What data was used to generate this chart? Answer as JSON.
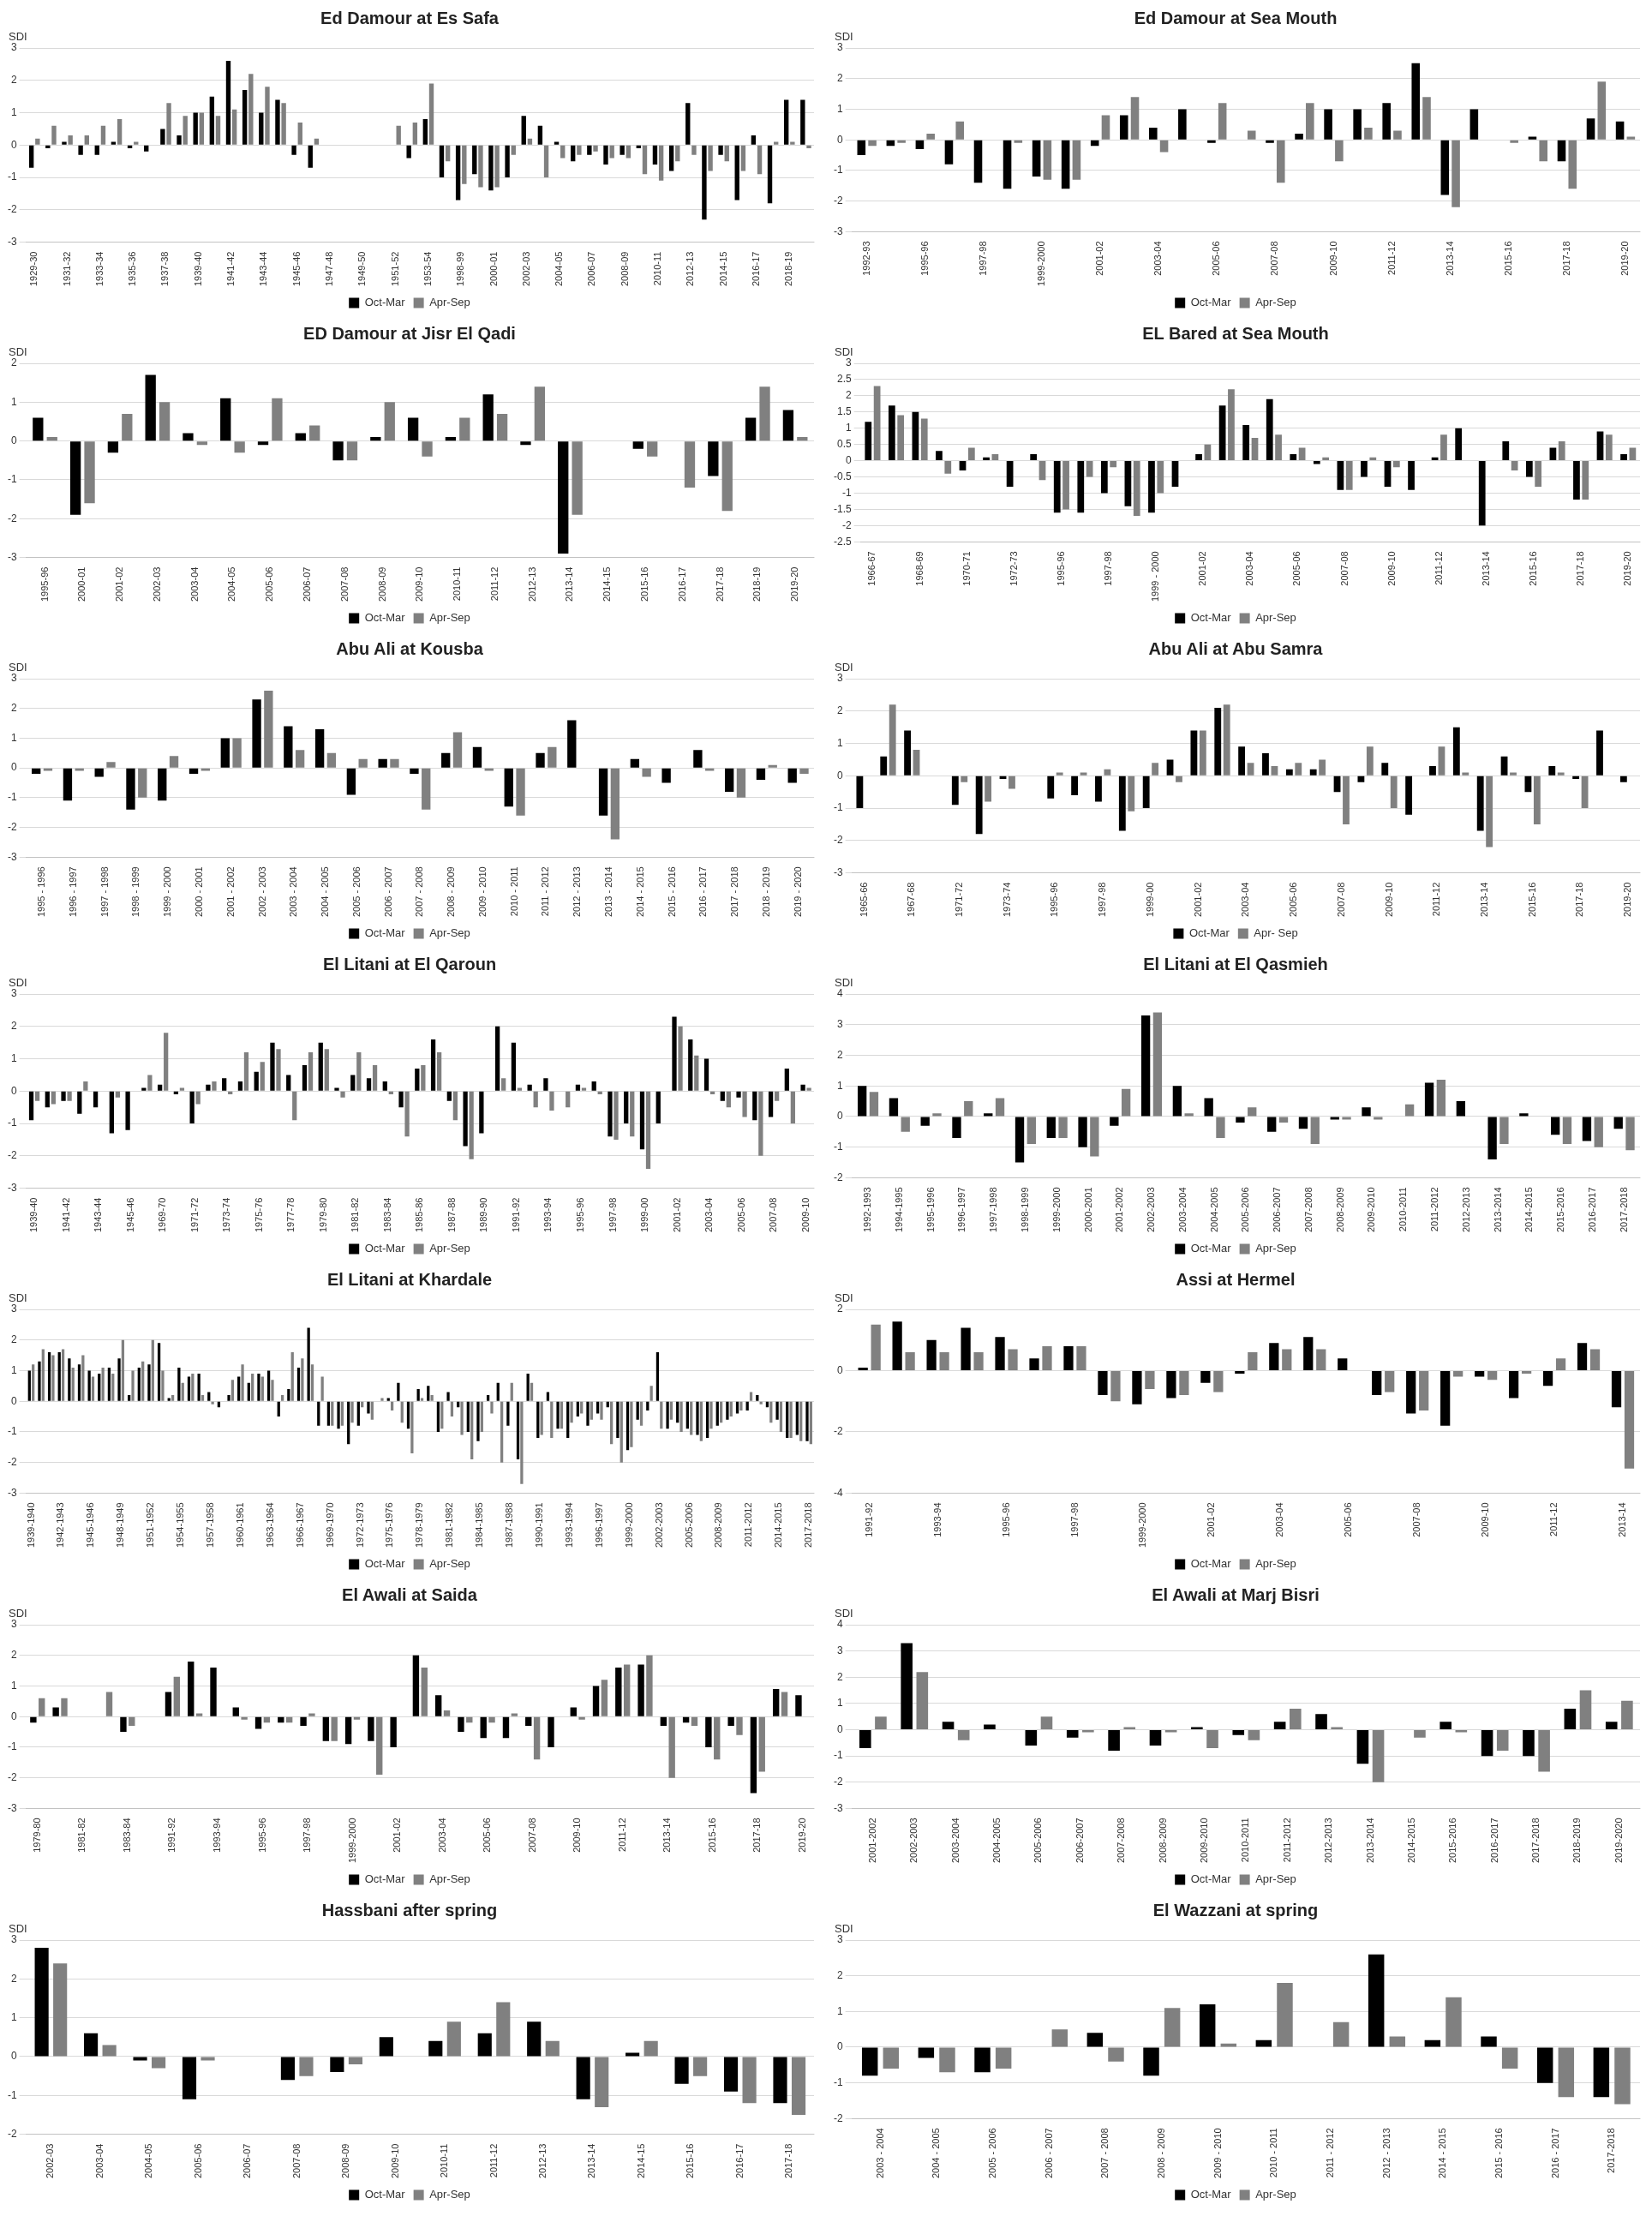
{
  "chart_data": [
    {
      "type": "bar",
      "title": "Ed Damour at Es Safa",
      "ylabel": "SDI",
      "legend": "bottom",
      "grid": "y",
      "ylim": [
        -3,
        3
      ],
      "yticks": [
        -3,
        -2,
        -1,
        0,
        1,
        2,
        3
      ],
      "categories": [
        "1929-30",
        null,
        "1931-32",
        null,
        "1933-34",
        null,
        "1935-36",
        null,
        "1937-38",
        null,
        "1939-40",
        null,
        "1941-42",
        null,
        "1943-44",
        null,
        "1945-46",
        null,
        "1947-48",
        null,
        "1949-50",
        null,
        "1951-52",
        null,
        "1953-54",
        null,
        "1998-99",
        null,
        "2000-01",
        null,
        "2002-03",
        null,
        "2004-05",
        null,
        "2006-07",
        null,
        "2008-09",
        null,
        "2010-11",
        null,
        "2012-13",
        null,
        "2014-15",
        null,
        "2016-17",
        null,
        "2018-19",
        null
      ],
      "series": [
        {
          "name": "Oct-Mar",
          "color": "#000000",
          "values": [
            -0.7,
            -0.1,
            0.1,
            -0.3,
            -0.3,
            0.1,
            -0.1,
            -0.2,
            0.5,
            0.3,
            1.0,
            1.5,
            2.6,
            1.7,
            1.0,
            1.4,
            -0.3,
            -0.7,
            null,
            null,
            null,
            null,
            0.0,
            -0.4,
            0.8,
            -1.0,
            -1.7,
            -0.9,
            -1.4,
            -1.0,
            0.9,
            0.6,
            0.1,
            -0.5,
            -0.3,
            -0.6,
            -0.3,
            -0.1,
            -0.6,
            -0.8,
            1.3,
            -2.3,
            -0.3,
            -1.7,
            0.3,
            -1.8,
            1.4,
            1.4
          ]
        },
        {
          "name": "Apr-Sep",
          "color": "#808080",
          "values": [
            0.2,
            0.6,
            0.3,
            0.3,
            0.6,
            0.8,
            0.1,
            0.0,
            1.3,
            0.9,
            1.0,
            0.9,
            1.1,
            2.2,
            1.8,
            1.3,
            0.7,
            0.2,
            null,
            null,
            null,
            null,
            0.6,
            0.7,
            1.9,
            -0.5,
            -1.2,
            -1.3,
            -1.3,
            -0.3,
            0.2,
            -1.0,
            -0.4,
            -0.3,
            -0.2,
            -0.4,
            -0.4,
            -0.9,
            -1.1,
            -0.5,
            -0.3,
            -0.8,
            -0.5,
            -0.8,
            -0.9,
            0.1,
            0.1,
            -0.1
          ]
        }
      ]
    },
    {
      "type": "bar",
      "title": "Ed Damour at Sea Mouth",
      "ylabel": "SDI",
      "legend": "bottom",
      "grid": "y",
      "ylim": [
        -3,
        3
      ],
      "yticks": [
        -3,
        -2,
        -1,
        0,
        1,
        2,
        3
      ],
      "categories": [
        "1992-93",
        null,
        "1995-96",
        null,
        "1997-98",
        null,
        "1999-2000",
        null,
        "2001-02",
        null,
        "2003-04",
        null,
        "2005-06",
        null,
        "2007-08",
        null,
        "2009-10",
        null,
        "2011-12",
        null,
        "2013-14",
        null,
        "2015-16",
        null,
        "2017-18",
        null,
        "2019-20"
      ],
      "series": [
        {
          "name": "Oct-Mar",
          "color": "#000000",
          "values": [
            -0.5,
            -0.2,
            -0.3,
            -0.8,
            -1.4,
            -1.6,
            -1.2,
            -1.6,
            -0.2,
            0.8,
            0.4,
            1.0,
            -0.1,
            0.0,
            -0.1,
            0.2,
            1.0,
            1.0,
            1.2,
            2.5,
            -1.8,
            1.0,
            0.0,
            0.1,
            -0.7,
            0.7,
            0.6
          ]
        },
        {
          "name": "Apr-Sep",
          "color": "#808080",
          "values": [
            -0.2,
            -0.1,
            0.2,
            0.6,
            0.0,
            -0.1,
            -1.3,
            -1.3,
            0.8,
            1.4,
            -0.4,
            0.0,
            1.2,
            0.3,
            -1.4,
            1.2,
            -0.7,
            0.4,
            0.3,
            1.4,
            -2.2,
            0.0,
            -0.1,
            -0.7,
            -1.6,
            1.9,
            0.1
          ]
        }
      ]
    },
    {
      "type": "bar",
      "title": "ED Damour at Jisr El Qadi",
      "ylabel": "SDI",
      "legend": "bottom",
      "grid": "y",
      "ylim": [
        -3,
        2
      ],
      "yticks": [
        -3,
        -2,
        -1,
        0,
        1,
        2
      ],
      "categories": [
        "1995-96",
        "2000-01",
        "2001-02",
        "2002-03",
        "2003-04",
        "2004-05",
        "2005-06",
        "2006-07",
        "2007-08",
        "2008-09",
        "2009-10",
        "2010-11",
        "2011-12",
        "2012-13",
        "2013-14",
        "2014-15",
        "2015-16",
        "2016-17",
        "2017-18",
        "2018-19",
        "2019-20"
      ],
      "series": [
        {
          "name": "Oct-Mar",
          "color": "#000000",
          "values": [
            0.6,
            -1.9,
            -0.3,
            1.7,
            0.2,
            1.1,
            -0.1,
            0.2,
            -0.5,
            0.1,
            0.6,
            0.1,
            1.2,
            -0.1,
            -2.9,
            0.0,
            -0.2,
            0.0,
            -0.9,
            0.6,
            0.8
          ]
        },
        {
          "name": "Apr-Sep",
          "color": "#808080",
          "values": [
            0.1,
            -1.6,
            0.7,
            1.0,
            -0.1,
            -0.3,
            1.1,
            0.4,
            -0.5,
            1.0,
            -0.4,
            0.6,
            0.7,
            1.4,
            -1.9,
            0.0,
            -0.4,
            -1.2,
            -1.8,
            1.4,
            0.1
          ]
        }
      ]
    },
    {
      "type": "bar",
      "title": "EL Bared at Sea Mouth",
      "ylabel": "SDI",
      "legend": "bottom",
      "grid": "y",
      "ylim": [
        -2.5,
        3
      ],
      "yticks": [
        -2.5,
        -2,
        -1.5,
        -1,
        -0.5,
        0,
        0.5,
        1,
        1.5,
        2,
        2.5,
        3
      ],
      "categories": [
        "1966-67",
        null,
        "1968-69",
        null,
        "1970-71",
        null,
        "1972-73",
        null,
        "1995-96",
        null,
        "1997-98",
        null,
        "1999 - 2000",
        null,
        "2001-02",
        null,
        "2003-04",
        null,
        "2005-06",
        null,
        "2007-08",
        null,
        "2009-10",
        null,
        "2011-12",
        null,
        "2013-14",
        null,
        "2015-16",
        null,
        "2017-18",
        null,
        "2019-20"
      ],
      "series": [
        {
          "name": "Oct-Mar",
          "color": "#000000",
          "values": [
            1.2,
            1.7,
            1.5,
            0.3,
            -0.3,
            0.1,
            -0.8,
            0.2,
            -1.6,
            -1.6,
            -1.0,
            -1.4,
            -1.6,
            -0.8,
            0.2,
            1.7,
            1.1,
            1.9,
            0.2,
            -0.1,
            -0.9,
            -0.5,
            -0.8,
            -0.9,
            0.1,
            1.0,
            -2.0,
            0.6,
            -0.5,
            0.4,
            -1.2,
            0.9,
            0.2
          ]
        },
        {
          "name": "Apr-Sep",
          "color": "#808080",
          "values": [
            2.3,
            1.4,
            1.3,
            -0.4,
            0.4,
            0.2,
            0.0,
            -0.6,
            -1.5,
            -0.5,
            -0.2,
            -1.7,
            -1.0,
            0.0,
            0.5,
            2.2,
            0.7,
            0.8,
            0.4,
            0.1,
            -0.9,
            0.1,
            -0.2,
            0.0,
            0.8,
            0.0,
            0.0,
            -0.3,
            -0.8,
            0.6,
            -1.2,
            0.8,
            0.4
          ]
        }
      ]
    },
    {
      "type": "bar",
      "title": "Abu Ali at Kousba",
      "ylabel": "SDI",
      "legend": "bottom",
      "grid": "y",
      "ylim": [
        -3,
        3
      ],
      "yticks": [
        -3,
        -2,
        -1,
        0,
        1,
        2,
        3
      ],
      "categories": [
        "1995 - 1996",
        "1996 - 1997",
        "1997 - 1998",
        "1998 - 1999",
        "1999 - 2000",
        "2000 - 2001",
        "2001 - 2002",
        "2002 - 2003",
        "2003 - 2004",
        "2004 - 2005",
        "2005 - 2006",
        "2006 - 2007",
        "2007 - 2008",
        "2008 - 2009",
        "2009 - 2010",
        "2010 - 2011",
        "2011 - 2012",
        "2012 - 2013",
        "2013 - 2014",
        "2014 - 2015",
        "2015 - 2016",
        "2016 - 2017",
        "2017 - 2018",
        "2018 - 2019",
        "2019 - 2020"
      ],
      "series": [
        {
          "name": "Oct-Mar",
          "color": "#000000",
          "values": [
            -0.2,
            -1.1,
            -0.3,
            -1.4,
            -1.1,
            -0.2,
            1.0,
            2.3,
            1.4,
            1.3,
            -0.9,
            0.3,
            -0.2,
            0.5,
            0.7,
            -1.3,
            0.5,
            1.6,
            -1.6,
            0.3,
            -0.5,
            0.6,
            -0.8,
            -0.4,
            -0.5
          ]
        },
        {
          "name": "Apr-Sep",
          "color": "#808080",
          "values": [
            -0.1,
            -0.1,
            0.2,
            -1.0,
            0.4,
            -0.1,
            1.0,
            2.6,
            0.6,
            0.5,
            0.3,
            0.3,
            -1.4,
            1.2,
            -0.1,
            -1.6,
            0.7,
            0.0,
            -2.4,
            -0.3,
            0.0,
            -0.1,
            -1.0,
            0.1,
            -0.2
          ]
        }
      ]
    },
    {
      "type": "bar",
      "title": "Abu Ali at Abu Samra",
      "ylabel": "SDI",
      "legend": "bottom",
      "grid": "y",
      "ylim": [
        -3,
        3
      ],
      "yticks": [
        -3,
        -2,
        -1,
        0,
        1,
        2,
        3
      ],
      "categories": [
        "1965-66",
        null,
        "1967-68",
        null,
        "1971-72",
        null,
        "1973-74",
        null,
        "1995-96",
        null,
        "1997-98",
        null,
        "1999-00",
        null,
        "2001-02",
        null,
        "2003-04",
        null,
        "2005-06",
        null,
        "2007-08",
        null,
        "2009-10",
        null,
        "2011-12",
        null,
        "2013-14",
        null,
        "2015-16",
        null,
        "2017-18",
        null,
        "2019-20"
      ],
      "series": [
        {
          "name": "Oct-Mar",
          "color": "#000000",
          "values": [
            -1.0,
            0.6,
            1.4,
            null,
            -0.9,
            -1.8,
            -0.1,
            null,
            -0.7,
            -0.6,
            -0.8,
            -1.7,
            -1.0,
            0.5,
            1.4,
            2.1,
            0.9,
            0.7,
            0.2,
            0.2,
            -0.5,
            -0.2,
            0.4,
            -1.2,
            0.3,
            1.5,
            -1.7,
            0.6,
            -0.5,
            0.3,
            -0.1,
            1.4,
            -0.2
          ]
        },
        {
          "name": "Apr- Sep",
          "color": "#808080",
          "values": [
            0.0,
            2.2,
            0.8,
            null,
            -0.2,
            -0.8,
            -0.4,
            null,
            0.1,
            0.1,
            0.2,
            -1.1,
            0.4,
            -0.2,
            1.4,
            2.2,
            0.4,
            0.3,
            0.4,
            0.5,
            -1.5,
            0.9,
            -1.0,
            0.0,
            0.9,
            0.1,
            -2.2,
            0.1,
            -1.5,
            0.1,
            -1.0,
            0.0,
            0.0
          ]
        }
      ]
    },
    {
      "type": "bar",
      "title": "El Litani at El Qaroun",
      "ylabel": "SDI",
      "legend": "bottom",
      "grid": "y",
      "ylim": [
        -3,
        3
      ],
      "yticks": [
        -3,
        -2,
        -1,
        0,
        1,
        2,
        3
      ],
      "categories": [
        "1939-40",
        null,
        "1941-42",
        null,
        "1943-44",
        null,
        "1945-46",
        null,
        "1969-70",
        null,
        "1971-72",
        null,
        "1973-74",
        null,
        "1975-76",
        null,
        "1977-78",
        null,
        "1979-80",
        null,
        "1981-82",
        null,
        "1983-84",
        null,
        "1985-86",
        null,
        "1987-88",
        null,
        "1989-90",
        null,
        "1991-92",
        null,
        "1993-94",
        null,
        "1995-96",
        null,
        "1997-98",
        null,
        "1999-00",
        null,
        "2001-02",
        null,
        "2003-04",
        null,
        "2005-06",
        null,
        "2007-08",
        null,
        "2009-10"
      ],
      "series": [
        {
          "name": "Oct-Mar",
          "color": "#000000",
          "values": [
            -0.9,
            -0.5,
            -0.3,
            -0.7,
            -0.5,
            -1.3,
            -1.2,
            0.1,
            0.2,
            -0.1,
            -1.0,
            0.2,
            0.4,
            0.3,
            0.6,
            1.5,
            0.5,
            0.8,
            1.5,
            0.1,
            0.5,
            0.4,
            0.3,
            -0.5,
            0.7,
            1.6,
            -0.3,
            -1.7,
            -1.3,
            2.0,
            1.5,
            0.2,
            0.4,
            0.0,
            0.2,
            0.3,
            -1.4,
            -1.0,
            -1.8,
            -1.0,
            2.3,
            1.6,
            1.0,
            -0.3,
            -0.2,
            -0.9,
            -0.8,
            0.7,
            0.2
          ]
        },
        {
          "name": "Apr-Sep",
          "color": "#808080",
          "values": [
            -0.3,
            -0.4,
            -0.3,
            0.3,
            0.0,
            -0.2,
            0.0,
            0.5,
            1.8,
            0.1,
            -0.4,
            0.3,
            -0.1,
            1.2,
            0.9,
            1.3,
            -0.9,
            1.2,
            1.3,
            -0.2,
            1.2,
            0.8,
            -0.1,
            -1.4,
            0.8,
            1.2,
            -0.9,
            -2.1,
            0.0,
            0.4,
            0.1,
            -0.5,
            -0.6,
            -0.5,
            0.1,
            -0.1,
            -1.5,
            -1.4,
            -2.4,
            0.0,
            2.0,
            1.1,
            -0.1,
            -0.5,
            -0.8,
            -2.0,
            -0.3,
            -1.0,
            0.1
          ]
        }
      ]
    },
    {
      "type": "bar",
      "title": "El Litani at El Qasmieh",
      "ylabel": "SDI",
      "legend": "bottom",
      "grid": "y",
      "ylim": [
        -2,
        4
      ],
      "yticks": [
        -2,
        -1,
        0,
        1,
        2,
        3,
        4
      ],
      "categories": [
        "1992-1993",
        "1994-1995",
        "1995-1996",
        "1996-1997",
        "1997-1998",
        "1998-1999",
        "1999-2000",
        "2000-2001",
        "2001-2002",
        "2002-2003",
        "2003-2004",
        "2004-2005",
        "2005-2006",
        "2006-2007",
        "2007-2008",
        "2008-2009",
        "2009-2010",
        "2010-2011",
        "2011-2012",
        "2012-2013",
        "2013-2014",
        "2014-2015",
        "2015-2016",
        "2016-2017",
        "2017-2018"
      ],
      "series": [
        {
          "name": "Oct-Mar",
          "color": "#000000",
          "values": [
            1.0,
            0.6,
            -0.3,
            -0.7,
            0.1,
            -1.5,
            -0.7,
            -1.0,
            -0.3,
            3.3,
            1.0,
            0.6,
            -0.2,
            -0.5,
            -0.4,
            -0.1,
            0.3,
            0.0,
            1.1,
            0.5,
            -1.4,
            0.1,
            -0.6,
            -0.8,
            -0.4
          ]
        },
        {
          "name": "Apr-Sep",
          "color": "#808080",
          "values": [
            0.8,
            -0.5,
            0.1,
            0.5,
            0.6,
            -0.9,
            -0.7,
            -1.3,
            0.9,
            3.4,
            0.1,
            -0.7,
            0.3,
            -0.2,
            -0.9,
            -0.1,
            -0.1,
            0.4,
            1.2,
            0.0,
            -0.9,
            0.0,
            -0.9,
            -1.0,
            -1.1
          ]
        }
      ]
    },
    {
      "type": "bar",
      "title": "El Litani at Khardale",
      "ylabel": "SDI",
      "legend": "bottom",
      "grid": "y",
      "ylim": [
        -3,
        3
      ],
      "yticks": [
        -3,
        -2,
        -1,
        0,
        1,
        2,
        3
      ],
      "categories": [
        "1939-1940",
        null,
        null,
        "1942-1943",
        null,
        null,
        "1945-1946",
        null,
        null,
        "1948-1949",
        null,
        null,
        "1951-1952",
        null,
        null,
        "1954-1955",
        null,
        null,
        "1957-1958",
        null,
        null,
        "1960-1961",
        null,
        null,
        "1963-1964",
        null,
        null,
        "1966-1967",
        null,
        null,
        "1969-1970",
        null,
        null,
        "1972-1973",
        null,
        null,
        "1975-1976",
        null,
        null,
        "1978-1979",
        null,
        null,
        "1981-1982",
        null,
        null,
        "1984-1985",
        null,
        null,
        "1987-1988",
        null,
        null,
        "1990-1991",
        null,
        null,
        "1993-1994",
        null,
        null,
        "1996-1997",
        null,
        null,
        "1999-2000",
        null,
        null,
        "2002-2003",
        null,
        null,
        "2005-2006",
        null,
        null,
        "2008-2009",
        null,
        null,
        "2011-2012",
        null,
        null,
        "2014-2015",
        null,
        null,
        "2017-2018"
      ],
      "series": [
        {
          "name": "Oct-Mar",
          "color": "#000000",
          "values": [
            1.0,
            1.3,
            1.6,
            1.6,
            1.4,
            1.2,
            1.0,
            0.9,
            1.1,
            1.4,
            0.2,
            1.1,
            1.2,
            1.9,
            0.1,
            1.1,
            0.8,
            0.9,
            0.3,
            -0.2,
            0.2,
            0.8,
            0.6,
            0.9,
            1.0,
            -0.5,
            0.4,
            1.1,
            2.4,
            -0.8,
            -0.8,
            -0.9,
            -1.4,
            -0.8,
            -0.4,
            0.0,
            0.1,
            0.6,
            -0.9,
            0.4,
            0.5,
            -1.0,
            0.3,
            -0.2,
            -1.0,
            -1.3,
            0.2,
            0.6,
            -0.8,
            -1.9,
            0.9,
            -1.2,
            0.3,
            -0.9,
            -1.2,
            -0.5,
            -0.8,
            -0.4,
            -0.2,
            -1.2,
            -1.6,
            -0.6,
            -0.3,
            1.6,
            -0.9,
            -0.7,
            -0.9,
            -1.1,
            -1.2,
            -0.8,
            -0.6,
            -0.4,
            -0.3,
            0.2,
            -0.2,
            -0.6,
            -1.2,
            -1.1,
            -1.3
          ]
        },
        {
          "name": "Apr-Sep",
          "color": "#808080",
          "values": [
            1.2,
            1.7,
            1.5,
            1.7,
            1.1,
            1.5,
            0.8,
            1.1,
            0.9,
            2.0,
            1.0,
            1.3,
            2.0,
            1.0,
            0.2,
            0.6,
            0.9,
            0.2,
            -0.1,
            0.0,
            0.7,
            1.2,
            0.9,
            0.8,
            0.7,
            0.2,
            1.6,
            1.4,
            1.2,
            0.8,
            -0.8,
            -0.8,
            -0.7,
            -0.2,
            -0.6,
            0.1,
            -0.3,
            -0.7,
            -1.7,
            0.1,
            0.2,
            -0.9,
            -0.5,
            -1.1,
            -1.9,
            -1.0,
            -0.4,
            -2.0,
            0.6,
            -2.7,
            0.6,
            -1.1,
            -1.2,
            -0.9,
            -0.7,
            -0.4,
            -0.6,
            -0.6,
            -1.4,
            -2.0,
            -1.5,
            -0.8,
            0.5,
            -0.9,
            -0.6,
            -1.0,
            -1.1,
            -1.3,
            -0.9,
            -0.7,
            -0.5,
            -0.3,
            0.3,
            -0.1,
            -0.7,
            -1.0,
            -1.2,
            -1.3,
            -1.4
          ]
        }
      ]
    },
    {
      "type": "bar",
      "title": "Assi at Hermel",
      "ylabel": "SDI",
      "legend": "bottom",
      "grid": "y",
      "ylim": [
        -4,
        2
      ],
      "yticks": [
        -4,
        -2,
        0,
        2
      ],
      "categories": [
        "1991-92",
        null,
        "1993-94",
        null,
        "1995-96",
        null,
        "1997-98",
        null,
        "1999-2000",
        null,
        "2001-02",
        null,
        "2003-04",
        null,
        "2005-06",
        null,
        "2007-08",
        null,
        "2009-10",
        null,
        "2011-12",
        null,
        "2013-14"
      ],
      "series": [
        {
          "name": "Oct-Mar",
          "color": "#000000",
          "values": [
            0.1,
            1.6,
            1.0,
            1.4,
            1.1,
            0.4,
            0.8,
            -0.8,
            -1.1,
            -0.9,
            -0.4,
            -0.1,
            0.9,
            1.1,
            0.4,
            -0.8,
            -1.4,
            -1.8,
            -0.2,
            -0.9,
            -0.5,
            0.9,
            -1.2
          ]
        },
        {
          "name": "Apr-Sep",
          "color": "#808080",
          "values": [
            1.5,
            0.6,
            0.6,
            0.6,
            0.7,
            0.8,
            0.8,
            -1.0,
            -0.6,
            -0.8,
            -0.7,
            0.6,
            0.7,
            0.7,
            0.0,
            -0.7,
            -1.3,
            -0.2,
            -0.3,
            -0.1,
            0.4,
            0.7,
            -3.2
          ]
        }
      ]
    },
    {
      "type": "bar",
      "title": "El Awali at Saida",
      "ylabel": "SDI",
      "legend": "bottom",
      "grid": "y",
      "ylim": [
        -3,
        3
      ],
      "yticks": [
        -3,
        -2,
        -1,
        0,
        1,
        2,
        3
      ],
      "categories": [
        "1979-80",
        null,
        "1981-82",
        null,
        "1983-84",
        null,
        "1991-92",
        null,
        "1993-94",
        null,
        "1995-96",
        null,
        "1997-98",
        null,
        "1999-2000",
        null,
        "2001-02",
        null,
        "2003-04",
        null,
        "2005-06",
        null,
        "2007-08",
        null,
        "2009-10",
        null,
        "2011-12",
        null,
        "2013-14",
        null,
        "2015-16",
        null,
        "2017-18",
        null,
        "2019-20"
      ],
      "series": [
        {
          "name": "Oct-Mar",
          "color": "#000000",
          "values": [
            -0.2,
            0.3,
            null,
            0.0,
            -0.5,
            null,
            0.8,
            1.8,
            1.6,
            0.3,
            -0.4,
            -0.2,
            -0.3,
            -0.8,
            -0.9,
            -0.8,
            -1.0,
            2.0,
            0.7,
            -0.5,
            -0.7,
            -0.7,
            -0.3,
            -1.0,
            0.3,
            1.0,
            1.6,
            1.7,
            -0.3,
            -0.2,
            -1.0,
            -0.3,
            -2.5,
            0.9,
            0.7
          ]
        },
        {
          "name": "Apr-Sep",
          "color": "#808080",
          "values": [
            0.6,
            0.6,
            null,
            0.8,
            -0.3,
            null,
            1.3,
            0.1,
            0.0,
            -0.1,
            -0.2,
            -0.2,
            0.1,
            -0.8,
            -0.1,
            -1.9,
            0.0,
            1.6,
            0.2,
            -0.2,
            -0.2,
            0.1,
            -1.4,
            0.0,
            -0.1,
            1.2,
            1.7,
            2.0,
            -2.0,
            -0.3,
            -1.4,
            -0.6,
            -1.8,
            0.8,
            0.0
          ]
        }
      ]
    },
    {
      "type": "bar",
      "title": "El Awali at Marj Bisri",
      "ylabel": "SDI",
      "legend": "bottom",
      "grid": "y",
      "ylim": [
        -3,
        4
      ],
      "yticks": [
        -3,
        -2,
        -1,
        0,
        1,
        2,
        3,
        4
      ],
      "categories": [
        "2001-2002",
        "2002-2003",
        "2003-2004",
        "2004-2005",
        "2005-2006",
        "2006-2007",
        "2007-2008",
        "2008-2009",
        "2009-2010",
        "2010-2011",
        "2011-2012",
        "2012-2013",
        "2013-2014",
        "2014-2015",
        "2015-2016",
        "2016-2017",
        "2017-2018",
        "2018-2019",
        "2019-2020"
      ],
      "series": [
        {
          "name": "Oct-Mar",
          "color": "#000000",
          "values": [
            -0.7,
            3.3,
            0.3,
            0.2,
            -0.6,
            -0.3,
            -0.8,
            -0.6,
            0.1,
            -0.2,
            0.3,
            0.6,
            -1.3,
            0.0,
            0.3,
            -1.0,
            -1.0,
            0.8,
            0.3
          ]
        },
        {
          "name": "Apr-Sep",
          "color": "#808080",
          "values": [
            0.5,
            2.2,
            -0.4,
            0.0,
            0.5,
            -0.1,
            0.1,
            -0.1,
            -0.7,
            -0.4,
            0.8,
            0.1,
            -2.0,
            -0.3,
            -0.1,
            -0.8,
            -1.6,
            1.5,
            1.1
          ]
        }
      ]
    },
    {
      "type": "bar",
      "title": "Hassbani after spring",
      "ylabel": "SDI",
      "legend": "bottom",
      "grid": "y",
      "ylim": [
        -2,
        3
      ],
      "yticks": [
        -2,
        -1,
        0,
        1,
        2,
        3
      ],
      "categories": [
        "2002-03",
        "2003-04",
        "2004-05",
        "2005-06",
        "2006-07",
        "2007-08",
        "2008-09",
        "2009-10",
        "2010-11",
        "2011-12",
        "2012-13",
        "2013-14",
        "2014-15",
        "2015-16",
        "2016-17",
        "2017-18"
      ],
      "series": [
        {
          "name": "Oct-Mar",
          "color": "#000000",
          "values": [
            2.8,
            0.6,
            -0.1,
            -1.1,
            0.0,
            -0.6,
            -0.4,
            0.5,
            0.4,
            0.6,
            0.9,
            -1.1,
            0.1,
            -0.7,
            -0.9,
            -1.2
          ]
        },
        {
          "name": "Apr-Sep",
          "color": "#808080",
          "values": [
            2.4,
            0.3,
            -0.3,
            -0.1,
            0.0,
            -0.5,
            -0.2,
            0.0,
            0.9,
            1.4,
            0.4,
            -1.3,
            0.4,
            -0.5,
            -1.2,
            -1.5
          ]
        }
      ]
    },
    {
      "type": "bar",
      "title": "El Wazzani at spring",
      "ylabel": "SDI",
      "legend": "bottom",
      "grid": "y",
      "ylim": [
        -2,
        3
      ],
      "yticks": [
        -2,
        -1,
        0,
        1,
        2,
        3
      ],
      "categories": [
        "2003 - 2004",
        "2004 - 2005",
        "2005 - 2006",
        "2006 - 2007",
        "2007 - 2008",
        "2008 - 2009",
        "2009 - 2010",
        "2010 - 2011",
        "2011 - 2012",
        "2012 - 2013",
        "2014 - 2015",
        "2015 - 2016",
        "2016 - 2017",
        "2017-2018"
      ],
      "series": [
        {
          "name": "Oct-Mar",
          "color": "#000000",
          "values": [
            -0.8,
            -0.3,
            -0.7,
            0.0,
            0.4,
            -0.8,
            1.2,
            0.2,
            0.0,
            2.6,
            0.2,
            0.3,
            -1.0,
            -1.4
          ]
        },
        {
          "name": "Apr-Sep",
          "color": "#808080",
          "values": [
            -0.6,
            -0.7,
            -0.6,
            0.5,
            -0.4,
            1.1,
            0.1,
            1.8,
            0.7,
            0.3,
            1.4,
            -0.6,
            -1.4,
            -1.6
          ]
        }
      ]
    }
  ]
}
